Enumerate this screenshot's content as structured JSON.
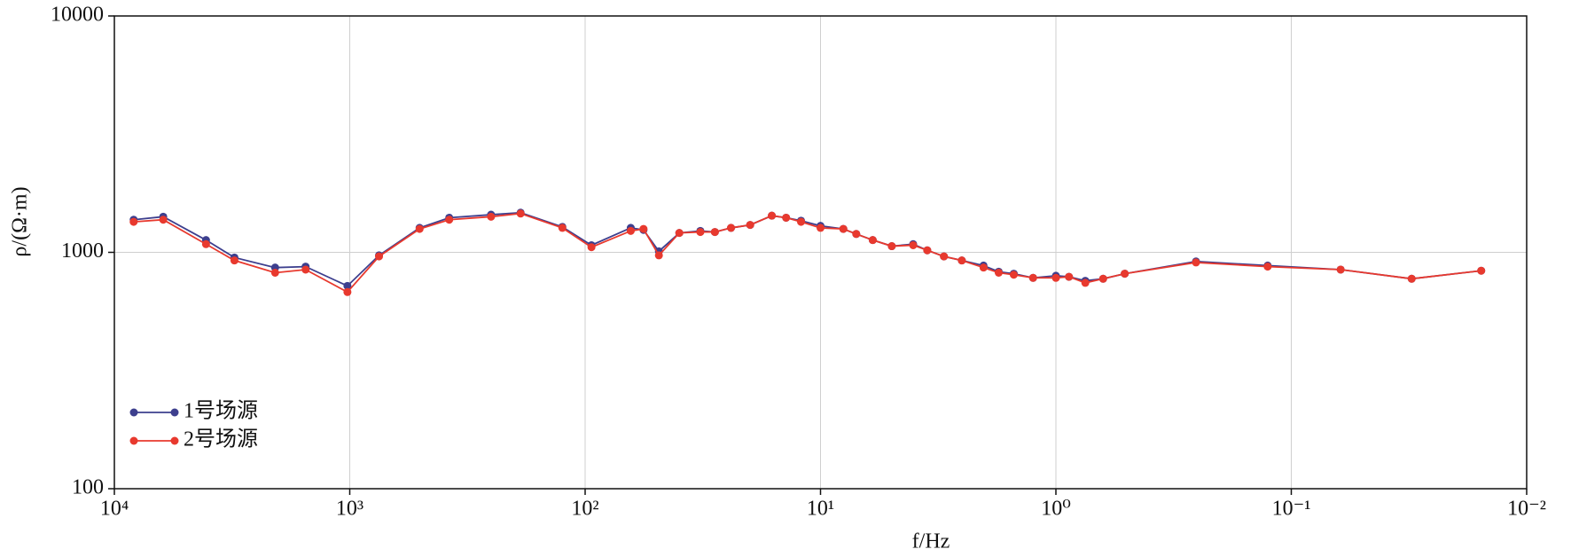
{
  "chart_data": {
    "type": "line",
    "x_label": "f/Hz",
    "y_label": "ρ/(Ω·m)",
    "x": [
      8280,
      6200,
      4080,
      3090,
      2075,
      1540,
      1023,
      751,
      505,
      378,
      251,
      188,
      125,
      94,
      64,
      56.5,
      48.6,
      39.8,
      32.4,
      28.1,
      24.0,
      19.9,
      16.1,
      14.0,
      12.1,
      10,
      8.0,
      7.05,
      6.0,
      4.98,
      4.04,
      3.52,
      2.99,
      2.51,
      2.03,
      1.75,
      1.51,
      1.25,
      1.0,
      0.88,
      0.75,
      0.63,
      0.51,
      0.254,
      0.126,
      0.0617,
      0.0308,
      0.0156
    ],
    "series": [
      {
        "name": "1号场源",
        "color": "#3d3f8e",
        "values": [
          1374,
          1415,
          1127,
          951,
          862,
          870,
          721,
          971,
          1269,
          1401,
          1443,
          1472,
          1281,
          1072,
          1269,
          1244,
          1010,
          1208,
          1232,
          1219,
          1269,
          1306,
          1429,
          1401,
          1361,
          1294,
          1256,
          1196,
          1127,
          1062,
          1083,
          1020,
          961,
          924,
          879,
          828,
          812,
          780,
          796,
          788,
          758,
          773,
          812,
          915,
          879,
          845,
          773,
          836
        ]
      },
      {
        "name": "2号场源",
        "color": "#e8392e",
        "values": [
          1346,
          1374,
          1083,
          924,
          820,
          845,
          679,
          961,
          1256,
          1374,
          1415,
          1459,
          1269,
          1051,
          1232,
          1256,
          971,
          1208,
          1219,
          1219,
          1269,
          1306,
          1429,
          1401,
          1346,
          1269,
          1256,
          1196,
          1127,
          1062,
          1072,
          1020,
          961,
          924,
          862,
          820,
          804,
          780,
          780,
          788,
          743,
          773,
          812,
          906,
          870,
          845,
          773,
          836
        ]
      }
    ],
    "xscale": "log",
    "yscale": "log",
    "xlim": [
      10000,
      0.01
    ],
    "xticks": [
      {
        "value": 10000,
        "label": "10⁴"
      },
      {
        "value": 1000,
        "label": "10³"
      },
      {
        "value": 100,
        "label": "10²"
      },
      {
        "value": 10,
        "label": "10¹"
      },
      {
        "value": 1,
        "label": "10⁰"
      },
      {
        "value": 0.1,
        "label": "10⁻¹"
      },
      {
        "value": 0.01,
        "label": "10⁻²"
      }
    ],
    "ylim": [
      100,
      10000
    ],
    "yticks": [
      100,
      1000,
      10000
    ],
    "grid": true,
    "legend": "lower left"
  }
}
